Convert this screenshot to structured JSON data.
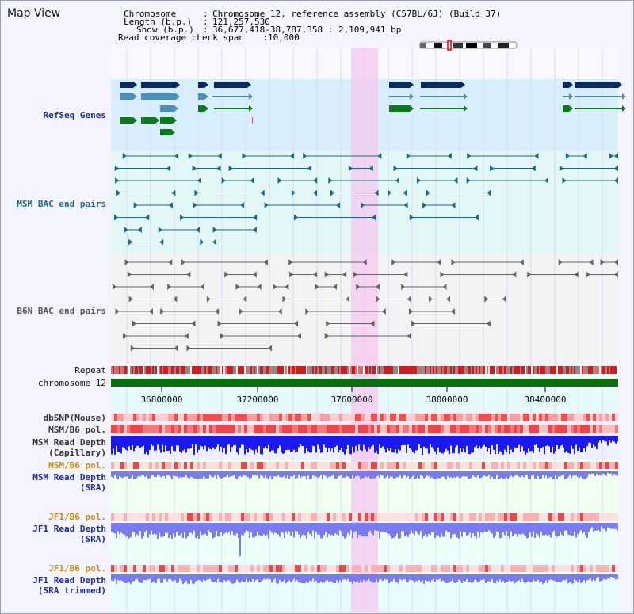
{
  "view": {
    "title": "Map View"
  },
  "header": {
    "chromosome_label": "Chromosome",
    "chromosome_value": "Chromosome 12, reference assembly (C57BL/6J) (Build 37)",
    "length_label": "Length (b.p.)",
    "length_value": "121,257,530",
    "show_label": "Show (b.p.)",
    "show_value": "36,677,418-38,787,358 : 2,109,941 bp",
    "coverage_label": "Read coverage check span",
    "coverage_value": "10,000"
  },
  "tracks": {
    "refseq": "RefSeq Genes",
    "msm_bac": "MSM BAC end pairs",
    "b6n_bac": "B6N BAC end pairs",
    "repeat": "Repeat",
    "chromosome": "chromosome 12",
    "dbsnp": "dbSNP(Mouse)",
    "msm_b6_pol_1": "MSM/B6 pol.",
    "msm_depth_cap_1": "MSM Read Depth",
    "msm_depth_cap_2": "(Capillary)",
    "msm_b6_pol_2": "MSM/B6 pol.",
    "msm_depth_sra_1": "MSM Read Depth",
    "msm_depth_sra_2": "(SRA)",
    "jf1_b6_pol_1": "JF1/B6 pol.",
    "jf1_depth_sra_1": "JF1 Read Depth",
    "jf1_depth_sra_2": "(SRA)",
    "jf1_b6_pol_2": "JF1/B6 pol.",
    "jf1_depth_trim_1": "JF1 Read Depth",
    "jf1_depth_trim_2": "(SRA trimmed)"
  },
  "axis_ticks": [
    "36800000",
    "37200000",
    "37600000",
    "38000000",
    "38400000"
  ],
  "colors": {
    "refseq_dark": "#0b2a5e",
    "refseq_mid": "#4a90b8",
    "refseq_green": "#0a7a1a",
    "msm_bac": "#1b6a86",
    "b6n_bac": "#666666",
    "chromosome": "#0a7010",
    "highlight": "#f6c8f0",
    "depth_blue": "#1a1aee",
    "depth_light": "#7b7bf0"
  }
}
